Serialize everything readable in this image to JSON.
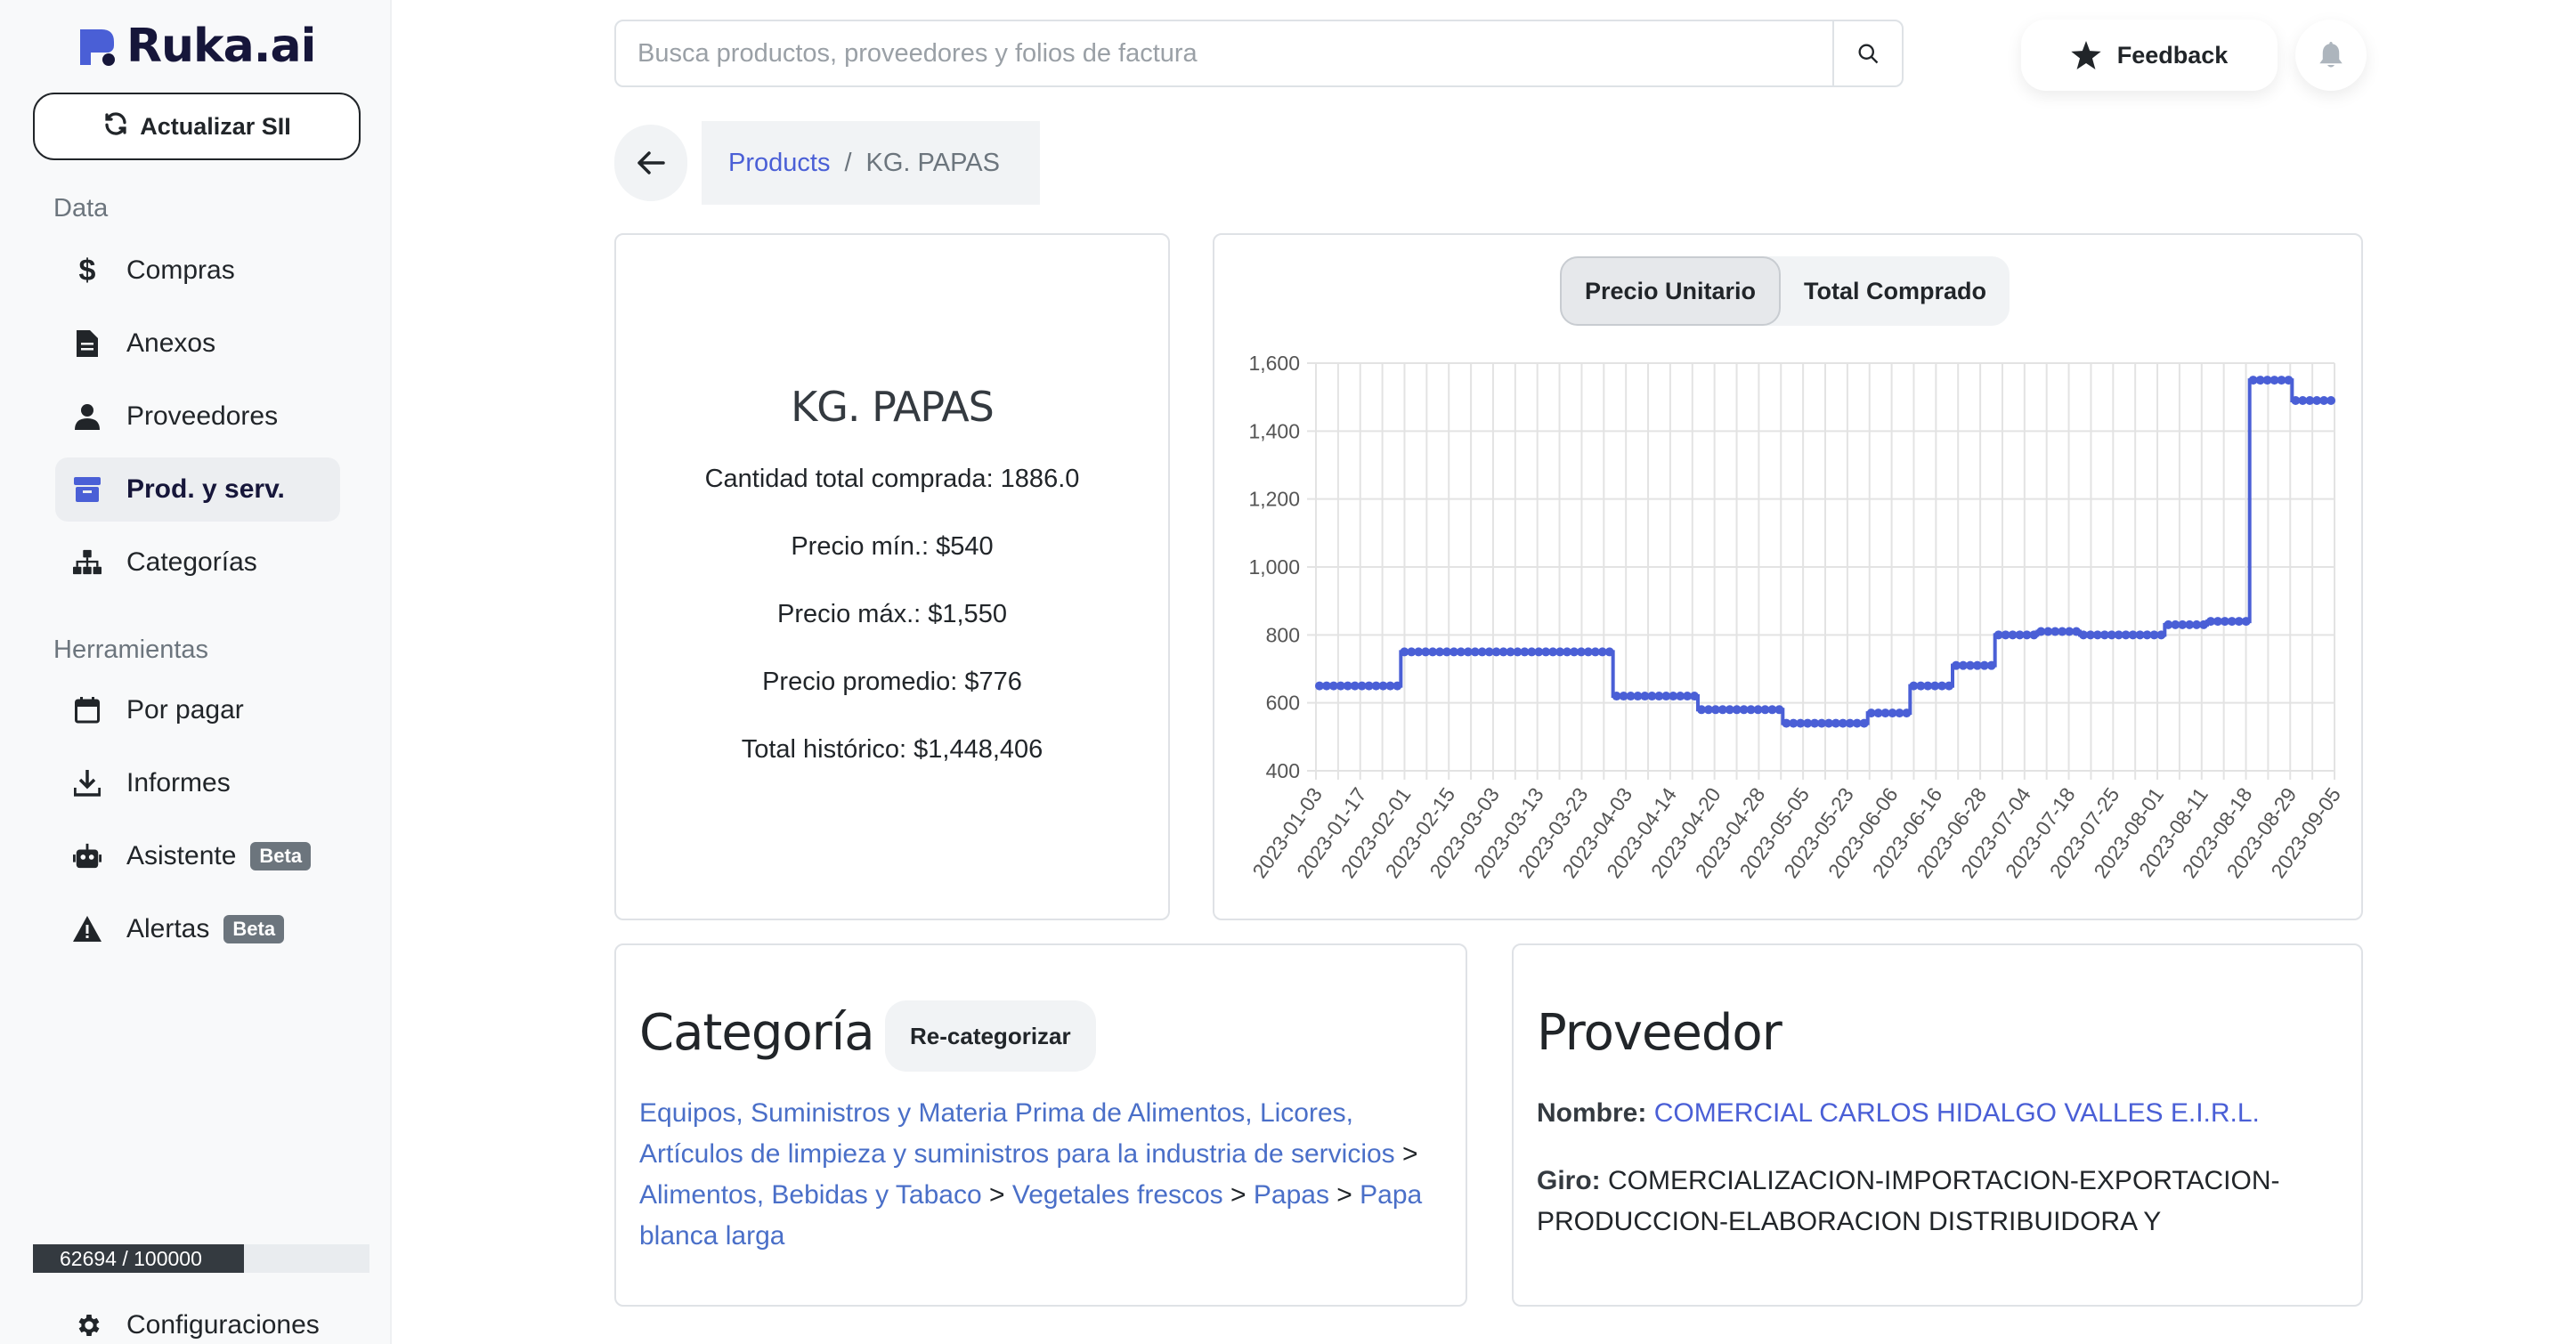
{
  "app": {
    "logo_text": "Ruka.ai",
    "update_button": "Actualizar SII"
  },
  "sidebar": {
    "section_data": "Data",
    "section_tools": "Herramientas",
    "items": [
      {
        "label": "Compras",
        "icon": "dollar-icon"
      },
      {
        "label": "Anexos",
        "icon": "document-icon"
      },
      {
        "label": "Proveedores",
        "icon": "user-icon"
      },
      {
        "label": "Prod. y serv.",
        "icon": "box-icon"
      },
      {
        "label": "Categorías",
        "icon": "hierarchy-icon"
      }
    ],
    "tools": [
      {
        "label": "Por pagar",
        "icon": "calendar-icon"
      },
      {
        "label": "Informes",
        "icon": "download-icon"
      },
      {
        "label": "Asistente",
        "icon": "robot-icon",
        "badge": "Beta"
      },
      {
        "label": "Alertas",
        "icon": "warning-icon",
        "badge": "Beta"
      }
    ],
    "quota_text": "62694 / 100000",
    "quota_fraction": 0.627,
    "settings_label": "Configuraciones"
  },
  "header": {
    "search_placeholder": "Busca productos, proveedores y folios de factura",
    "feedback_label": "Feedback"
  },
  "breadcrumb": {
    "root": "Products",
    "separator": "/",
    "current": "KG. PAPAS"
  },
  "summary": {
    "title": "KG. PAPAS",
    "stats": [
      "Cantidad total comprada: 1886.0",
      "Precio mín.: $540",
      "Precio máx.: $1,550",
      "Precio promedio: $776",
      "Total histórico: $1,448,406"
    ]
  },
  "chart_toggle": {
    "options": [
      "Precio Unitario",
      "Total Comprado"
    ],
    "selected": "Precio Unitario"
  },
  "chart_data": {
    "type": "line",
    "color": "#4a5fd6",
    "grid": true,
    "ylim": [
      400,
      1600
    ],
    "yticks": [
      "400",
      "600",
      "800",
      "1,000",
      "1,200",
      "1,400",
      "1,600"
    ],
    "x_tick_labels": [
      "2023-01-03",
      "2023-01-17",
      "2023-02-01",
      "2023-02-15",
      "2023-03-03",
      "2023-03-13",
      "2023-03-23",
      "2023-04-03",
      "2023-04-14",
      "2023-04-20",
      "2023-04-28",
      "2023-05-05",
      "2023-05-23",
      "2023-06-06",
      "2023-06-16",
      "2023-06-28",
      "2023-07-04",
      "2023-07-18",
      "2023-07-25",
      "2023-08-01",
      "2023-08-11",
      "2023-08-18",
      "2023-08-29",
      "2023-09-05"
    ],
    "values": [
      650,
      650,
      750,
      750,
      750,
      750,
      750,
      620,
      620,
      580,
      580,
      540,
      540,
      570,
      650,
      710,
      800,
      810,
      800,
      800,
      830,
      840,
      1550,
      1490
    ]
  },
  "category": {
    "title": "Categoría",
    "recategorize": "Re-categorizar",
    "path": [
      "Equipos, Suministros y Materia Prima de Alimentos, Licores, Artículos de limpieza y suministros para la industria de servicios",
      "Alimentos, Bebidas y Tabaco",
      "Vegetales frescos",
      "Papas",
      "Papa blanca larga"
    ],
    "separator": ">"
  },
  "provider": {
    "title": "Proveedor",
    "name_label": "Nombre:",
    "name": "COMERCIAL CARLOS HIDALGO VALLES E.I.R.L.",
    "giro_label": "Giro:",
    "giro": "COMERCIALIZACION-IMPORTACION-EXPORTACION-PRODUCCION-ELABORACION DISTRIBUIDORA Y"
  }
}
